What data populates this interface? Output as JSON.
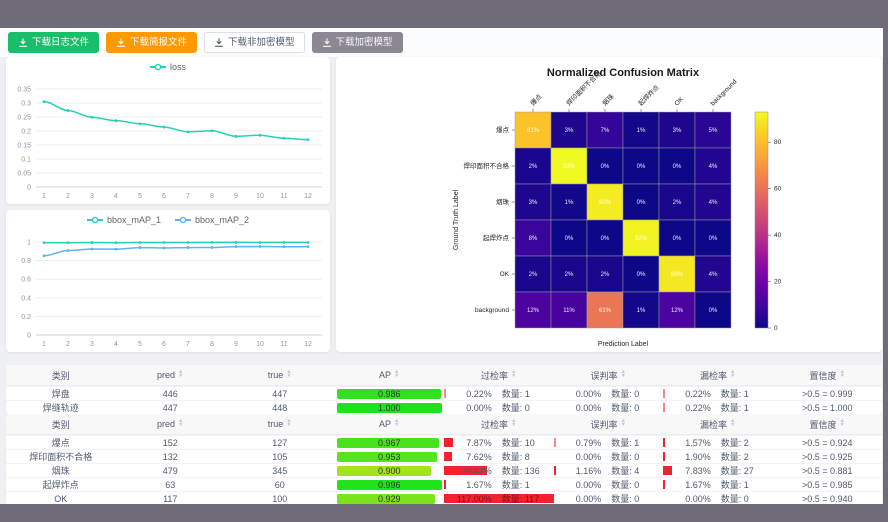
{
  "window": {
    "chrome_color": "#6f6b78",
    "page_bg": "#eef0f3",
    "accent_red": "#f5222d"
  },
  "toolbar": {
    "buttons": [
      {
        "label": "下载日志文件",
        "bg": "#19be6b",
        "fg": "#ffffff",
        "border": "#19be6b"
      },
      {
        "label": "下载简报文件",
        "bg": "#ff9900",
        "fg": "#ffffff",
        "border": "#ff9900"
      },
      {
        "label": "下载非加密模型",
        "bg": "#ffffff",
        "fg": "#515a6e",
        "border": "#dcdee2"
      },
      {
        "label": "下载加密模型",
        "bg": "#8b8793",
        "fg": "#f8f8f9",
        "border": "#8b8793"
      }
    ]
  },
  "chart_data": [
    {
      "type": "line",
      "title": "loss",
      "x": [
        1,
        2,
        3,
        4,
        5,
        6,
        7,
        8,
        9,
        10,
        11,
        12
      ],
      "series": [
        {
          "name": "loss",
          "color": "#27d0b5",
          "values": [
            0.305,
            0.273,
            0.249,
            0.237,
            0.226,
            0.214,
            0.197,
            0.201,
            0.181,
            0.185,
            0.174,
            0.169
          ]
        }
      ],
      "yticks": [
        0,
        0.05,
        0.1,
        0.15,
        0.2,
        0.25,
        0.3,
        0.35
      ],
      "ylim": [
        0,
        0.35
      ],
      "grid": true,
      "legend_position": "top"
    },
    {
      "type": "line",
      "title": "bbox_mAP",
      "x": [
        1,
        2,
        3,
        4,
        5,
        6,
        7,
        8,
        9,
        10,
        11,
        12
      ],
      "series": [
        {
          "name": "bbox_mAP_1",
          "color": "#27d0b5",
          "values": [
            0.993,
            0.992,
            0.994,
            0.992,
            0.995,
            0.995,
            0.995,
            0.996,
            0.996,
            0.995,
            0.996,
            0.996
          ]
        },
        {
          "name": "bbox_mAP_2",
          "color": "#5cb3f5",
          "values": [
            0.852,
            0.908,
            0.925,
            0.923,
            0.94,
            0.936,
            0.94,
            0.941,
            0.95,
            0.951,
            0.949,
            0.95
          ]
        }
      ],
      "yticks": [
        0,
        0.2,
        0.4,
        0.6,
        0.8,
        1
      ],
      "ylim": [
        0,
        1
      ],
      "grid": true,
      "legend_position": "top"
    },
    {
      "type": "heatmap",
      "title": "Normalized Confusion Matrix",
      "xlabel": "Prediction Label",
      "ylabel": "Ground Truth Label",
      "categories": [
        "爆点",
        "焊印面积不合格",
        "烟珠",
        "起焊炸点",
        "OK",
        "background"
      ],
      "matrix": [
        [
          81,
          3,
          7,
          1,
          3,
          5
        ],
        [
          2,
          93,
          0,
          0,
          0,
          4
        ],
        [
          3,
          1,
          90,
          0,
          2,
          4
        ],
        [
          8,
          0,
          0,
          92,
          0,
          0
        ],
        [
          2,
          2,
          2,
          0,
          89,
          4
        ],
        [
          12,
          11,
          61,
          1,
          12,
          0
        ]
      ],
      "vmax": 93,
      "colorbar_ticks": [
        0,
        20,
        40,
        60,
        80
      ],
      "colormap": "plasma",
      "cell_label_suffix": "%"
    }
  ],
  "tables": [
    {
      "headers": [
        {
          "label": "类别",
          "sortable": false
        },
        {
          "label": "pred",
          "sortable": true
        },
        {
          "label": "true",
          "sortable": true
        },
        {
          "label": "AP",
          "sortable": true
        },
        {
          "label": "过检率",
          "sortable": true
        },
        {
          "label": "误判率",
          "sortable": true
        },
        {
          "label": "漏检率",
          "sortable": true
        },
        {
          "label": "置信度",
          "sortable": true
        }
      ],
      "count_label": "数量:",
      "rows": [
        {
          "category": "焊盘",
          "pred": "446",
          "true": "447",
          "ap": "0.986",
          "overdetect_rate": "0.22%",
          "overdetect_pct": 0.22,
          "overdetect_count": "1",
          "misjudge_rate": "0.00%",
          "misjudge_pct": 0,
          "misjudge_count": "0",
          "miss_rate": "0.22%",
          "miss_pct": 0.22,
          "miss_count": "1",
          "confidence": ">0.5 = 0.999"
        },
        {
          "category": "焊缝轨迹",
          "pred": "447",
          "true": "448",
          "ap": "1.000",
          "overdetect_rate": "0.00%",
          "overdetect_pct": 0,
          "overdetect_count": "0",
          "misjudge_rate": "0.00%",
          "misjudge_pct": 0,
          "misjudge_count": "0",
          "miss_rate": "0.22%",
          "miss_pct": 0.22,
          "miss_count": "1",
          "confidence": ">0.5 = 1.000"
        }
      ]
    },
    {
      "headers": [
        {
          "label": "类别",
          "sortable": false
        },
        {
          "label": "pred",
          "sortable": true
        },
        {
          "label": "true",
          "sortable": true
        },
        {
          "label": "AP",
          "sortable": true
        },
        {
          "label": "过检率",
          "sortable": true
        },
        {
          "label": "误判率",
          "sortable": true
        },
        {
          "label": "漏检率",
          "sortable": true
        },
        {
          "label": "置信度",
          "sortable": true
        }
      ],
      "count_label": "数量:",
      "rows": [
        {
          "category": "爆点",
          "pred": "152",
          "true": "127",
          "ap": "0.967",
          "overdetect_rate": "7.87%",
          "overdetect_pct": 7.87,
          "overdetect_count": "10",
          "misjudge_rate": "0.79%",
          "misjudge_pct": 0.79,
          "misjudge_count": "1",
          "miss_rate": "1.57%",
          "miss_pct": 1.57,
          "miss_count": "2",
          "confidence": ">0.5 = 0.924"
        },
        {
          "category": "焊印面积不合格",
          "pred": "132",
          "true": "105",
          "ap": "0.953",
          "overdetect_rate": "7.62%",
          "overdetect_pct": 7.62,
          "overdetect_count": "8",
          "misjudge_rate": "0.00%",
          "misjudge_pct": 0,
          "misjudge_count": "0",
          "miss_rate": "1.90%",
          "miss_pct": 1.9,
          "miss_count": "2",
          "confidence": ">0.5 = 0.925"
        },
        {
          "category": "烟珠",
          "pred": "479",
          "true": "345",
          "ap": "0.900",
          "overdetect_rate": "39.42%",
          "overdetect_pct": 39.42,
          "overdetect_count": "136",
          "misjudge_rate": "1.16%",
          "misjudge_pct": 1.16,
          "misjudge_count": "4",
          "miss_rate": "7.83%",
          "miss_pct": 7.83,
          "miss_count": "27",
          "confidence": ">0.5 = 0.881"
        },
        {
          "category": "起焊炸点",
          "pred": "63",
          "true": "60",
          "ap": "0.996",
          "overdetect_rate": "1.67%",
          "overdetect_pct": 1.67,
          "overdetect_count": "1",
          "misjudge_rate": "0.00%",
          "misjudge_pct": 0,
          "misjudge_count": "0",
          "miss_rate": "1.67%",
          "miss_pct": 1.67,
          "miss_count": "1",
          "confidence": ">0.5 = 0.985"
        },
        {
          "category": "OK",
          "pred": "117",
          "true": "100",
          "ap": "0.929",
          "overdetect_rate": "117.00%",
          "overdetect_pct": 117,
          "overdetect_count": "117",
          "misjudge_rate": "0.00%",
          "misjudge_pct": 0,
          "misjudge_count": "0",
          "miss_rate": "0.00%",
          "miss_pct": 0,
          "miss_count": "0",
          "confidence": ">0.5 = 0.940"
        }
      ]
    }
  ]
}
